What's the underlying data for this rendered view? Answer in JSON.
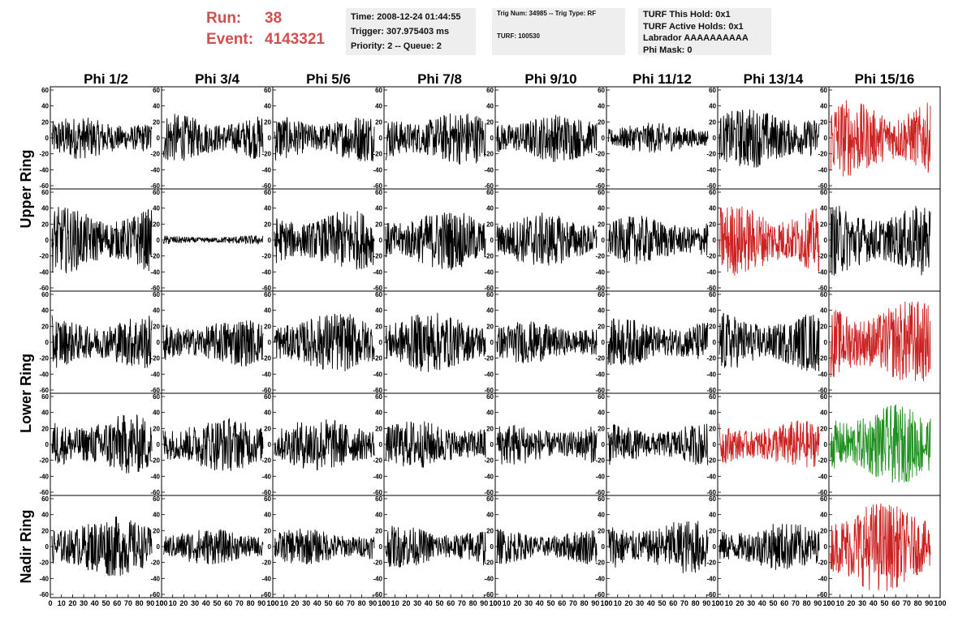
{
  "header": {
    "run_label": "Run:",
    "run_value": "38",
    "event_label": "Event:",
    "event_value": "4143321",
    "time_line": "Time: 2008-12-24 01:44:55",
    "trigger_line": "Trigger: 307.975403 ms",
    "priority_line": "Priority: 2 -- Queue: 2",
    "trig_line": "Trig Num: 34985 -- Trig Type: RF",
    "turf_line": "TURF: 100530",
    "hold_line": "TURF This Hold: 0x1",
    "active_holds_line": "TURF Active Holds: 0x1",
    "labrador_line": "Labrador AAAAAAAAAA",
    "phi_mask_line": "Phi Mask: 0"
  },
  "columns": [
    "Phi 1/2",
    "Phi 3/4",
    "Phi 5/6",
    "Phi 7/8",
    "Phi 9/10",
    "Phi 11/12",
    "Phi 13/14",
    "Phi 15/16"
  ],
  "row_groups": [
    "Upper Ring",
    "Lower Ring",
    "Nadir Ring"
  ],
  "colors": {
    "normal": "#000000",
    "triggered": "#cc2222",
    "green": "#1f8f1f",
    "title": "#d05050"
  },
  "chart_data": {
    "type": "line",
    "xlim": [
      0,
      100
    ],
    "ylim": [
      -60,
      60
    ],
    "x_tick_labels": [
      "0",
      "10",
      "20",
      "30",
      "40",
      "50",
      "60",
      "70",
      "80",
      "90",
      "100"
    ],
    "y_tick_labels": [
      "60",
      "40",
      "20",
      "0",
      "-20",
      "-40",
      "-60"
    ],
    "panels": [
      [
        {
          "amp": 14,
          "color": "normal"
        },
        {
          "amp": 16,
          "color": "normal"
        },
        {
          "amp": 16,
          "color": "normal"
        },
        {
          "amp": 18,
          "color": "normal"
        },
        {
          "amp": 16,
          "color": "normal"
        },
        {
          "amp": 10,
          "color": "normal"
        },
        {
          "amp": 20,
          "color": "normal"
        },
        {
          "amp": 26,
          "color": "triggered"
        }
      ],
      [
        {
          "amp": 22,
          "color": "normal"
        },
        {
          "amp": 3,
          "color": "normal"
        },
        {
          "amp": 20,
          "color": "normal"
        },
        {
          "amp": 20,
          "color": "normal"
        },
        {
          "amp": 18,
          "color": "normal"
        },
        {
          "amp": 16,
          "color": "normal"
        },
        {
          "amp": 24,
          "color": "triggered"
        },
        {
          "amp": 24,
          "color": "normal"
        }
      ],
      [
        {
          "amp": 18,
          "color": "normal"
        },
        {
          "amp": 16,
          "color": "normal"
        },
        {
          "amp": 20,
          "color": "normal"
        },
        {
          "amp": 20,
          "color": "normal"
        },
        {
          "amp": 14,
          "color": "normal"
        },
        {
          "amp": 16,
          "color": "normal"
        },
        {
          "amp": 20,
          "color": "normal"
        },
        {
          "amp": 28,
          "color": "triggered"
        }
      ],
      [
        {
          "amp": 20,
          "color": "normal"
        },
        {
          "amp": 18,
          "color": "normal"
        },
        {
          "amp": 18,
          "color": "normal"
        },
        {
          "amp": 16,
          "color": "normal"
        },
        {
          "amp": 14,
          "color": "normal"
        },
        {
          "amp": 14,
          "color": "normal"
        },
        {
          "amp": 16,
          "color": "triggered"
        },
        {
          "amp": 26,
          "color": "green"
        }
      ],
      [
        {
          "amp": 20,
          "color": "normal"
        },
        {
          "amp": 12,
          "color": "normal"
        },
        {
          "amp": 12,
          "color": "normal"
        },
        {
          "amp": 14,
          "color": "normal"
        },
        {
          "amp": 12,
          "color": "normal"
        },
        {
          "amp": 18,
          "color": "normal"
        },
        {
          "amp": 16,
          "color": "normal"
        },
        {
          "amp": 30,
          "color": "triggered"
        }
      ]
    ]
  }
}
